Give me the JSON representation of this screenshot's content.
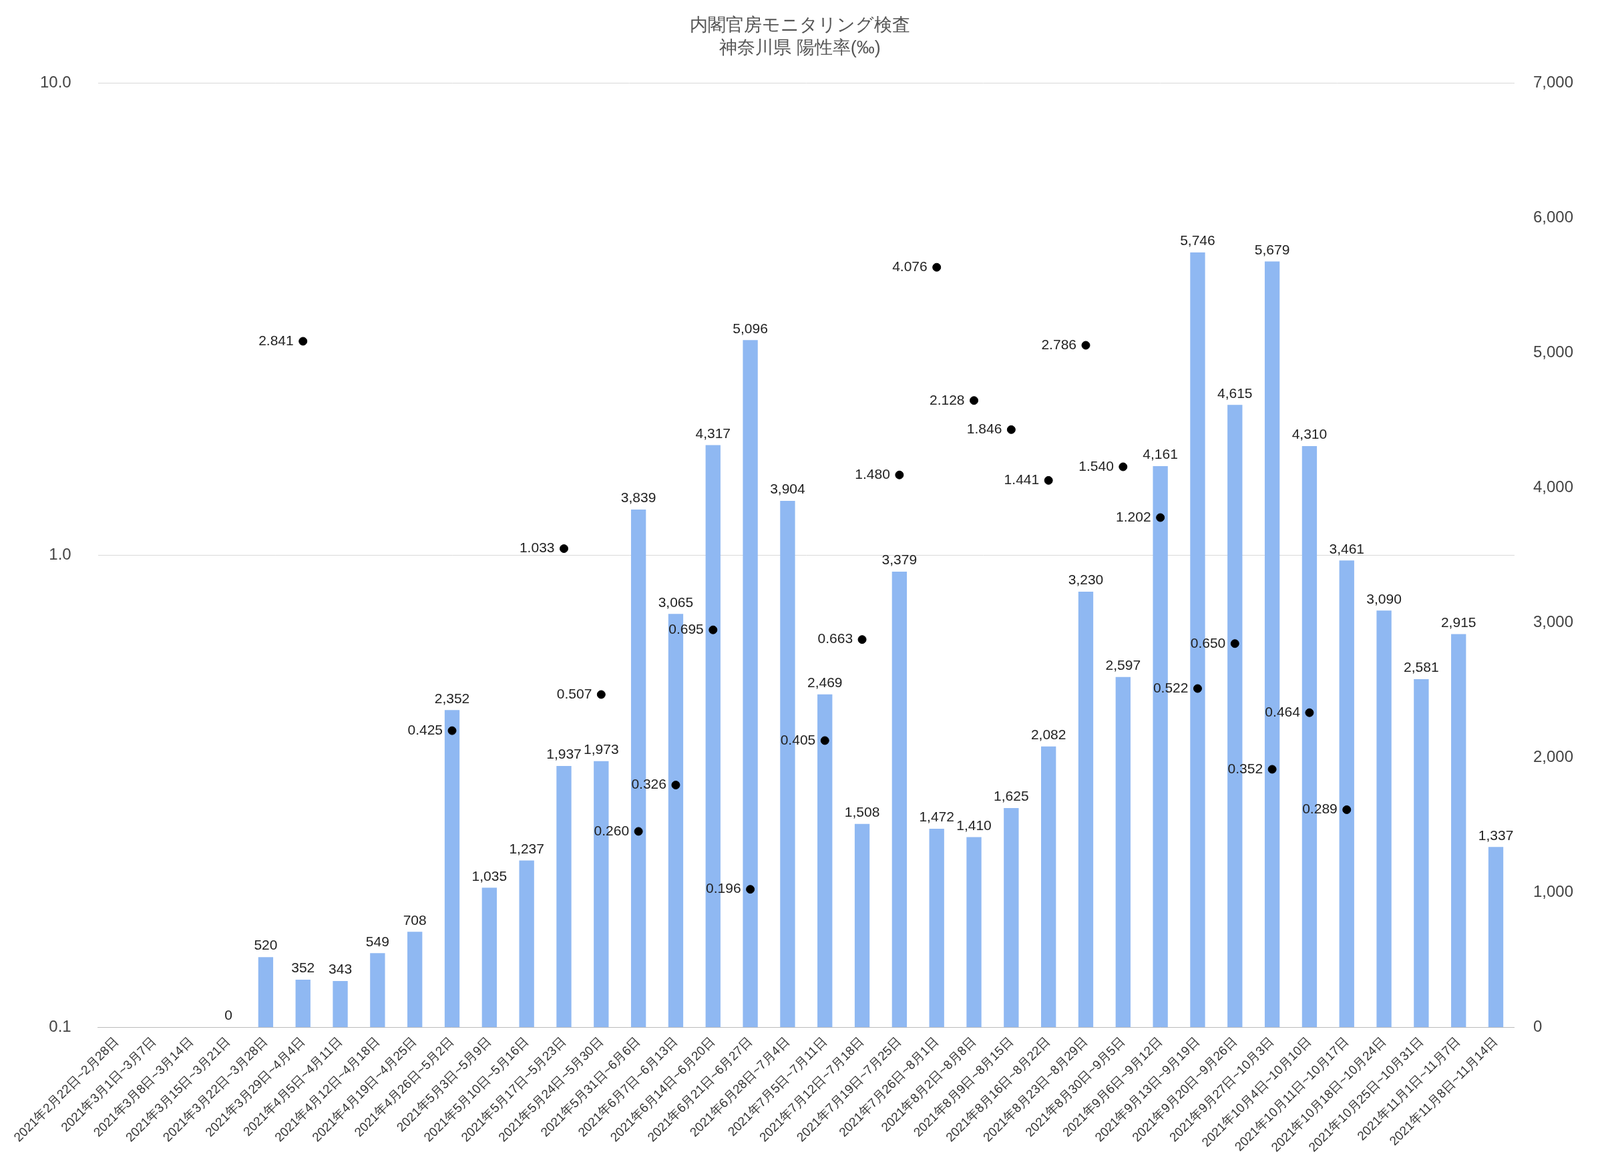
{
  "chart_data": {
    "type": "bar",
    "title": "内閣官房モニタリング検査",
    "subtitle": "神奈川県 陽性率(‰)",
    "categories": [
      "2021年2月22日~2月28日",
      "2021年3月1日~3月7日",
      "2021年3月8日~3月14日",
      "2021年3月15日~3月21日",
      "2021年3月22日~3月28日",
      "2021年3月29日~4月4日",
      "2021年4月5日~4月11日",
      "2021年4月12日~4月18日",
      "2021年4月19日~4月25日",
      "2021年4月26日~5月2日",
      "2021年5月3日~5月9日",
      "2021年5月10日~5月16日",
      "2021年5月17日~5月23日",
      "2021年5月24日~5月30日",
      "2021年5月31日~6月6日",
      "2021年6月7日~6月13日",
      "2021年6月14日~6月20日",
      "2021年6月21日~6月27日",
      "2021年6月28日~7月4日",
      "2021年7月5日~7月11日",
      "2021年7月12日~7月18日",
      "2021年7月19日~7月25日",
      "2021年7月26日~8月1日",
      "2021年8月2日~8月8日",
      "2021年8月9日~8月15日",
      "2021年8月16日~8月22日",
      "2021年8月23日~8月29日",
      "2021年8月30日~9月5日",
      "2021年9月6日~9月12日",
      "2021年9月13日~9月19日",
      "2021年9月20日~9月26日",
      "2021年9月27日~10月3日",
      "2021年10月4日~10月10日",
      "2021年10月11日~10月17日",
      "2021年10月18日~10月24日",
      "2021年10月25日~10月31日",
      "2021年11月1日~11月7日",
      "2021年11月8日~11月14日"
    ],
    "series": [
      {
        "type": "bar",
        "axis": "y2",
        "color": "#8fb8f2",
        "values": [
          null,
          null,
          null,
          0,
          520,
          352,
          343,
          549,
          708,
          2352,
          1035,
          1237,
          1937,
          1973,
          3839,
          3065,
          4317,
          5096,
          3904,
          2469,
          1508,
          3379,
          1472,
          1410,
          1625,
          2082,
          3230,
          2597,
          4161,
          5746,
          4615,
          5679,
          4310,
          3461,
          3090,
          2581,
          2915,
          1337
        ],
        "value_labels": [
          null,
          null,
          null,
          "0",
          "520",
          "352",
          "343",
          "549",
          "708",
          "2,352",
          "1,035",
          "1,237",
          "1,937",
          "1,973",
          "3,839",
          "3,065",
          "4,317",
          "5,096",
          "3,904",
          "2,469",
          "1,508",
          "3,379",
          "1,472",
          "1,410",
          "1,625",
          "2,082",
          "3,230",
          "2,597",
          "4,161",
          "5,746",
          "4,615",
          "5,679",
          "4,310",
          "3,461",
          "3,090",
          "2,581",
          "2,915",
          "1,337"
        ]
      },
      {
        "type": "scatter",
        "axis": "y",
        "color": "#000000",
        "marker": "circle",
        "values": [
          null,
          null,
          null,
          null,
          null,
          2.841,
          null,
          null,
          null,
          0.425,
          null,
          null,
          1.033,
          0.507,
          0.26,
          0.326,
          0.695,
          0.196,
          null,
          0.405,
          0.663,
          1.48,
          4.076,
          2.128,
          1.846,
          1.441,
          2.786,
          1.54,
          1.202,
          0.522,
          0.65,
          0.352,
          0.464,
          0.289,
          null,
          null,
          null,
          null
        ],
        "value_labels": [
          null,
          null,
          null,
          null,
          null,
          "2.841",
          null,
          null,
          null,
          "0.425",
          null,
          null,
          "1.033",
          "0.507",
          "0.260",
          "0.326",
          "0.695",
          "0.196",
          null,
          "0.405",
          "0.663",
          "1.480",
          "4.076",
          "2.128",
          "1.846",
          "1.441",
          "2.786",
          "1.540",
          "1.202",
          "0.522",
          "0.650",
          "0.352",
          "0.464",
          "0.289",
          null,
          null,
          null,
          null
        ]
      }
    ],
    "log": "y",
    "ylim": [
      0.1,
      10
    ],
    "yticks": [
      0.1,
      {
        "value": 1,
        "label": "1.0"
      },
      {
        "value": 10,
        "label": "10.0"
      }
    ],
    "y2lim": [
      0,
      7000
    ],
    "y2ticks": [
      0,
      {
        "value": 1000,
        "label": "1,000"
      },
      {
        "value": 2000,
        "label": "2,000"
      },
      {
        "value": 3000,
        "label": "3,000"
      },
      {
        "value": 4000,
        "label": "4,000"
      },
      {
        "value": 5000,
        "label": "5,000"
      },
      {
        "value": 6000,
        "label": "6,000"
      },
      {
        "value": 7000,
        "label": "7,000"
      }
    ],
    "grid": true,
    "data_labels": true
  }
}
